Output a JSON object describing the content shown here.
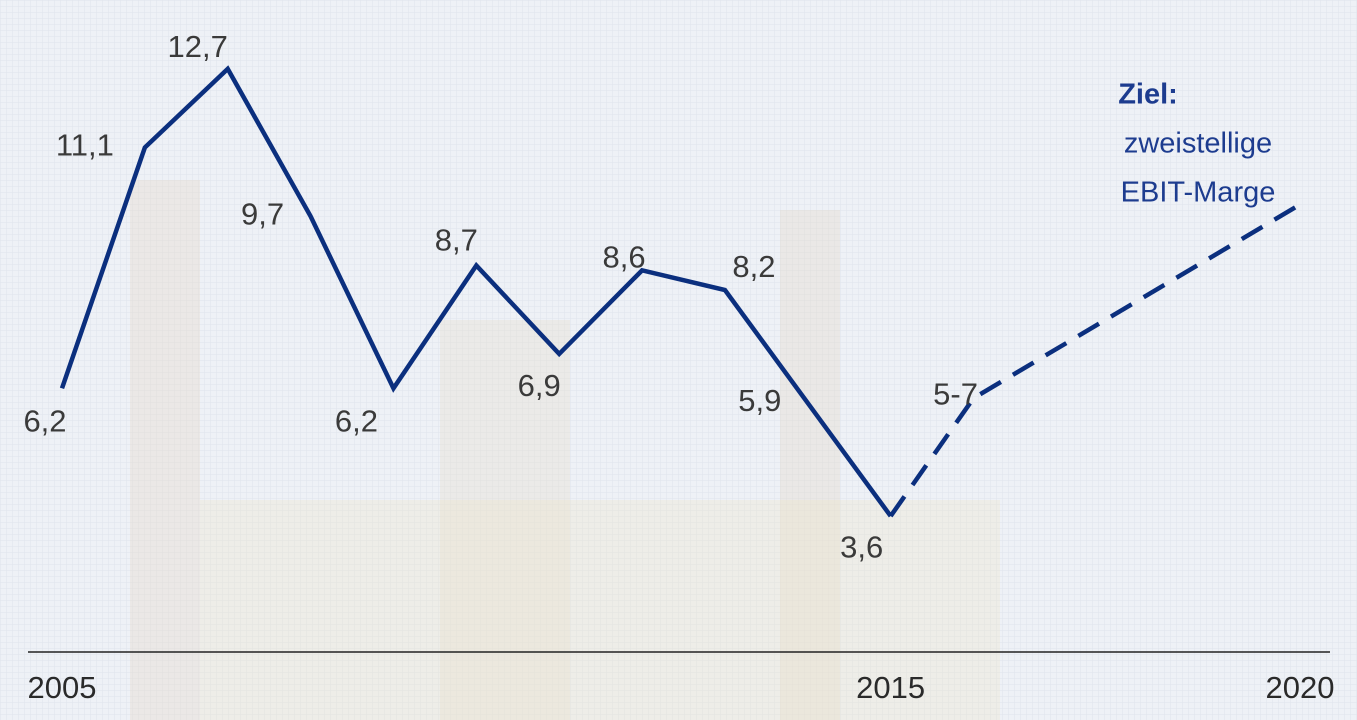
{
  "chart_data": {
    "type": "line",
    "series": [
      {
        "x": [
          2005,
          2006,
          2007,
          2008,
          2009,
          2010,
          2011,
          2012,
          2013,
          2014,
          2015
        ],
        "values": [
          6.2,
          11.1,
          12.7,
          9.7,
          6.2,
          8.7,
          6.9,
          8.6,
          8.2,
          5.9,
          3.6
        ],
        "value_labels": [
          "6,2",
          "11,1",
          "12,7",
          "9,7",
          "6,2",
          "8,7",
          "6,9",
          "8,6",
          "8,2",
          "5,9",
          "3,6"
        ],
        "color": "#0b2f7e",
        "style": "solid"
      },
      {
        "x": [
          2016,
          2020
        ],
        "values": [
          6,
          10
        ],
        "value_labels": [
          "5-7",
          null
        ],
        "color": "#0b2f7e",
        "style": "dashed"
      }
    ],
    "xlim": [
      2005,
      2020
    ],
    "xticks": [
      2005,
      2015,
      2020
    ],
    "ylim": [
      0,
      14
    ],
    "annotation": {
      "title": "Ziel:",
      "lines": [
        "zweistellige",
        "EBIT-Marge"
      ]
    }
  }
}
